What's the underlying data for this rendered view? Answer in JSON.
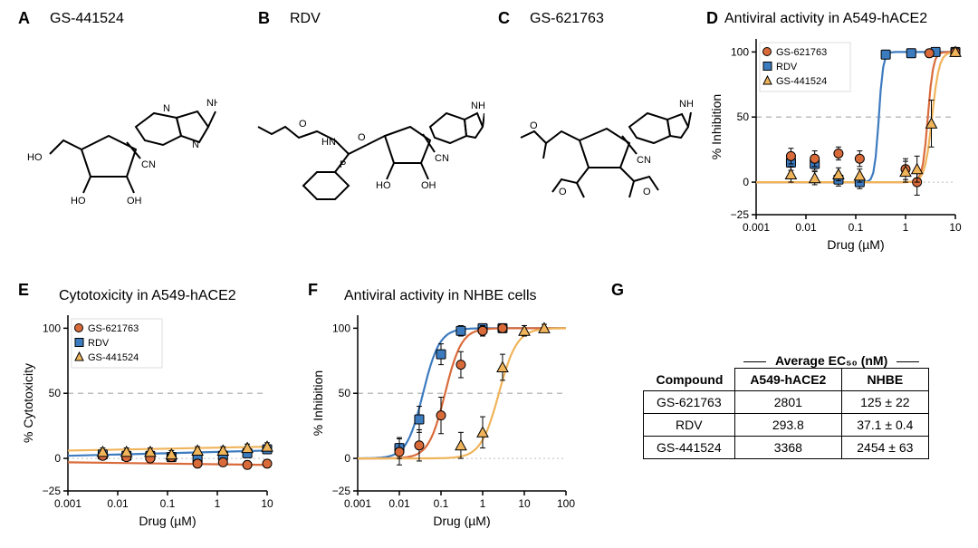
{
  "colors": {
    "gs621763": "#d96b3b",
    "rdv": "#3d7bbf",
    "gs441524": "#f0b45a",
    "axis": "#000000",
    "grid_dash": "#bdbdbd",
    "grid_dot": "#bdbdbd",
    "background": "#ffffff"
  },
  "panels": {
    "A": {
      "label": "A",
      "title": "GS-441524"
    },
    "B": {
      "label": "B",
      "title": "RDV"
    },
    "C": {
      "label": "C",
      "title": "GS-621763"
    },
    "D": {
      "label": "D",
      "title": "Antiviral activity in A549-hACE2",
      "type": "dose-response",
      "xlabel": "Drug (µM)",
      "ylabel": "% Inhibition",
      "xscale": "log",
      "xlim": [
        0.001,
        10
      ],
      "ylim": [
        -25,
        110
      ],
      "yticks": [
        -25,
        0,
        50,
        100
      ],
      "xticks": [
        0.001,
        0.01,
        0.1,
        1,
        10
      ],
      "ref50": 50,
      "ref0": 0,
      "legend": [
        "GS-621763",
        "RDV",
        "GS-441524"
      ],
      "series": {
        "gs621763": {
          "marker": "circle",
          "points": [
            {
              "x": 0.005,
              "y": 20,
              "err": 6
            },
            {
              "x": 0.015,
              "y": 18,
              "err": 6
            },
            {
              "x": 0.045,
              "y": 22,
              "err": 5
            },
            {
              "x": 0.12,
              "y": 18,
              "err": 6
            },
            {
              "x": 1.0,
              "y": 10,
              "err": 8
            },
            {
              "x": 1.7,
              "y": 0,
              "err": 10
            },
            {
              "x": 3.0,
              "y": 99,
              "err": 3
            },
            {
              "x": 10,
              "y": 100,
              "err": 2
            }
          ],
          "curve_ec50": 2.8,
          "curve_hill": 8
        },
        "rdv": {
          "marker": "square",
          "points": [
            {
              "x": 0.005,
              "y": 15,
              "err": 6
            },
            {
              "x": 0.015,
              "y": 14,
              "err": 5
            },
            {
              "x": 0.045,
              "y": 2,
              "err": 5
            },
            {
              "x": 0.12,
              "y": 0,
              "err": 5
            },
            {
              "x": 0.4,
              "y": 98,
              "err": 3
            },
            {
              "x": 1.3,
              "y": 99,
              "err": 3
            },
            {
              "x": 4,
              "y": 100,
              "err": 2
            },
            {
              "x": 10,
              "y": 100,
              "err": 2
            }
          ],
          "curve_ec50": 0.29,
          "curve_hill": 10
        },
        "gs441524": {
          "marker": "triangle",
          "points": [
            {
              "x": 0.005,
              "y": 6,
              "err": 6
            },
            {
              "x": 0.015,
              "y": 3,
              "err": 5
            },
            {
              "x": 0.045,
              "y": 6,
              "err": 5
            },
            {
              "x": 0.12,
              "y": 5,
              "err": 5
            },
            {
              "x": 1.0,
              "y": 8,
              "err": 8
            },
            {
              "x": 1.7,
              "y": 10,
              "err": 10
            },
            {
              "x": 3.3,
              "y": 45,
              "err": 18
            },
            {
              "x": 10,
              "y": 100,
              "err": 3
            }
          ],
          "curve_ec50": 3.4,
          "curve_hill": 6
        }
      }
    },
    "E": {
      "label": "E",
      "title": "Cytotoxicity in A549-hACE2",
      "type": "dose-response",
      "xlabel": "Drug (µM)",
      "ylabel": "% Cytotoxicity",
      "xscale": "log",
      "xlim": [
        0.001,
        10
      ],
      "ylim": [
        -25,
        110
      ],
      "yticks": [
        -25,
        0,
        50,
        100
      ],
      "xticks": [
        0.001,
        0.01,
        0.1,
        1,
        10
      ],
      "ref50": 50,
      "ref0": 0,
      "legend": [
        "GS-621763",
        "RDV",
        "GS-441524"
      ],
      "series": {
        "gs621763": {
          "marker": "circle",
          "points": [
            {
              "x": 0.005,
              "y": 2,
              "err": 3
            },
            {
              "x": 0.015,
              "y": 1,
              "err": 3
            },
            {
              "x": 0.045,
              "y": 0,
              "err": 3
            },
            {
              "x": 0.12,
              "y": 1,
              "err": 3
            },
            {
              "x": 0.4,
              "y": -4,
              "err": 3
            },
            {
              "x": 1.3,
              "y": -3,
              "err": 3
            },
            {
              "x": 4,
              "y": -5,
              "err": 3
            },
            {
              "x": 10,
              "y": -4,
              "err": 3
            }
          ],
          "flatline": -3
        },
        "rdv": {
          "marker": "square",
          "points": [
            {
              "x": 0.005,
              "y": 3,
              "err": 3
            },
            {
              "x": 0.015,
              "y": 2,
              "err": 3
            },
            {
              "x": 0.045,
              "y": 2,
              "err": 3
            },
            {
              "x": 0.12,
              "y": 1,
              "err": 3
            },
            {
              "x": 0.4,
              "y": 0,
              "err": 3
            },
            {
              "x": 1.3,
              "y": 2,
              "err": 3
            },
            {
              "x": 4,
              "y": 4,
              "err": 3
            },
            {
              "x": 10,
              "y": 7,
              "err": 3
            }
          ],
          "flatline": 2
        },
        "gs441524": {
          "marker": "triangle",
          "points": [
            {
              "x": 0.005,
              "y": 5,
              "err": 3
            },
            {
              "x": 0.015,
              "y": 5,
              "err": 3
            },
            {
              "x": 0.045,
              "y": 5,
              "err": 3
            },
            {
              "x": 0.12,
              "y": 3,
              "err": 3
            },
            {
              "x": 0.4,
              "y": 6,
              "err": 3
            },
            {
              "x": 1.3,
              "y": 6,
              "err": 3
            },
            {
              "x": 4,
              "y": 8,
              "err": 3
            },
            {
              "x": 10,
              "y": 9,
              "err": 3
            }
          ],
          "flatline": 6
        }
      }
    },
    "F": {
      "label": "F",
      "title": "Antiviral activity in NHBE cells",
      "type": "dose-response",
      "xlabel": "Drug (µM)",
      "ylabel": "% Inhibition",
      "xscale": "log",
      "xlim": [
        0.001,
        100
      ],
      "ylim": [
        -25,
        110
      ],
      "yticks": [
        -25,
        0,
        50,
        100
      ],
      "xticks": [
        0.001,
        0.01,
        0.1,
        1,
        10,
        100
      ],
      "ref50": 50,
      "ref0": 0,
      "series": {
        "gs621763": {
          "marker": "circle",
          "points": [
            {
              "x": 0.01,
              "y": 5,
              "err": 10
            },
            {
              "x": 0.03,
              "y": 10,
              "err": 12
            },
            {
              "x": 0.1,
              "y": 33,
              "err": 14
            },
            {
              "x": 0.3,
              "y": 72,
              "err": 10
            },
            {
              "x": 1,
              "y": 98,
              "err": 4
            },
            {
              "x": 3,
              "y": 100,
              "err": 3
            }
          ],
          "curve_ec50": 0.125,
          "curve_hill": 2.2
        },
        "rdv": {
          "marker": "square",
          "points": [
            {
              "x": 0.01,
              "y": 8,
              "err": 8
            },
            {
              "x": 0.03,
              "y": 30,
              "err": 10
            },
            {
              "x": 0.1,
              "y": 80,
              "err": 8
            },
            {
              "x": 0.3,
              "y": 98,
              "err": 4
            },
            {
              "x": 1,
              "y": 100,
              "err": 3
            },
            {
              "x": 3,
              "y": 100,
              "err": 3
            }
          ],
          "curve_ec50": 0.037,
          "curve_hill": 2.2
        },
        "gs441524": {
          "marker": "triangle",
          "points": [
            {
              "x": 0.3,
              "y": 10,
              "err": 10
            },
            {
              "x": 1,
              "y": 20,
              "err": 12
            },
            {
              "x": 3,
              "y": 70,
              "err": 10
            },
            {
              "x": 10,
              "y": 98,
              "err": 4
            },
            {
              "x": 30,
              "y": 100,
              "err": 3
            }
          ],
          "curve_ec50": 2.45,
          "curve_hill": 2
        }
      }
    },
    "G": {
      "label": "G",
      "header": "Average EC₅₀ (nM)",
      "columns": [
        "Compound",
        "A549-hACE2",
        "NHBE"
      ],
      "rows": [
        [
          "GS-621763",
          "2801",
          "125 ± 22"
        ],
        [
          "RDV",
          "293.8",
          "37.1 ± 0.4"
        ],
        [
          "GS-441524",
          "3368",
          "2454 ± 63"
        ]
      ]
    }
  }
}
